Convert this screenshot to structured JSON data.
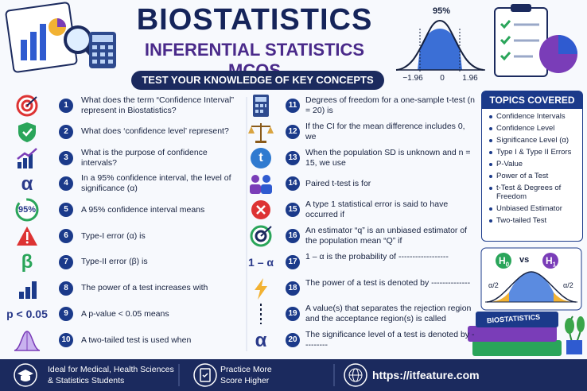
{
  "header": {
    "title": "BIOSTATISTICS",
    "subtitle": "INFERENTIAL STATISTICS MCQS",
    "banner": "TEST YOUR KNOWLEDGE OF KEY CONCEPTS"
  },
  "curve": {
    "area_label": "95%",
    "ticks": [
      "−1.96",
      "0",
      "1.96"
    ]
  },
  "questions": [
    {
      "number": 1,
      "text": "What does the term “Confidence Interval” represent in Biostatistics?"
    },
    {
      "number": 2,
      "text": "What does ‘confidence level’ represent?"
    },
    {
      "number": 3,
      "text": "What is the purpose of confidence intervals?"
    },
    {
      "number": 4,
      "icon_text": "α",
      "text": "In a 95% confidence interval, the level of significance (α)"
    },
    {
      "number": 5,
      "icon_text": "95%",
      "text": "A 95% confidence interval means"
    },
    {
      "number": 6,
      "text": "Type-I error (α) is"
    },
    {
      "number": 7,
      "icon_text": "β",
      "text": "Type-II error (β) is"
    },
    {
      "number": 8,
      "text": "The power of a test increases with"
    },
    {
      "number": 9,
      "icon_text": "p < 0.05",
      "text": "A p-value < 0.05 means"
    },
    {
      "number": 10,
      "text": "A two-tailed test is used when"
    },
    {
      "number": 11,
      "text": "Degrees of freedom for a one-sample t-test (n = 20) is"
    },
    {
      "number": 12,
      "text": "If the CI for the mean difference includes 0, we"
    },
    {
      "number": 13,
      "icon_text": "t",
      "text": "When the population SD is unknown and n = 15, we use"
    },
    {
      "number": 14,
      "text": "Paired t-test is for"
    },
    {
      "number": 15,
      "text": "A type 1 statistical error is said to have occurred if"
    },
    {
      "number": 16,
      "text": "An estimator “q” is an unbiased estimator of the population mean “Q” if"
    },
    {
      "number": 17,
      "icon_text": "1 – α",
      "text": "1 – α is the probability of ------------------"
    },
    {
      "number": 18,
      "text": "The power of a test is denoted by --------------"
    },
    {
      "number": 19,
      "text": "A value(s) that separates the rejection region and the acceptance region(s) is called"
    },
    {
      "number": 20,
      "icon_text": "α",
      "text": "The significance level of a test is denoted by ---------"
    }
  ],
  "topics": {
    "title": "TOPICS COVERED",
    "items": [
      "Confidence Intervals",
      "Confidence Level",
      "Significance Level (α)",
      "Type I & Type II Errors",
      "P-Value",
      "Power of a Test",
      "t-Test & Degrees of Freedom",
      "Unbiased Estimator",
      "Two-tailed Test"
    ]
  },
  "hypothesis": {
    "h0": "H",
    "h0_sub": "0",
    "vs": "vs",
    "h1": "H",
    "h1_sub": "1",
    "left_tail": "α/2",
    "right_tail": "α/2"
  },
  "book_label": "BIOSTATISTICS",
  "footer": [
    {
      "lines": [
        "Ideal for Medical, Health Sciences",
        "& Statistics Students"
      ]
    },
    {
      "lines": [
        "Practice More",
        "Score Higher"
      ]
    },
    {
      "lines": [
        "https://itfeature.com"
      ]
    }
  ]
}
